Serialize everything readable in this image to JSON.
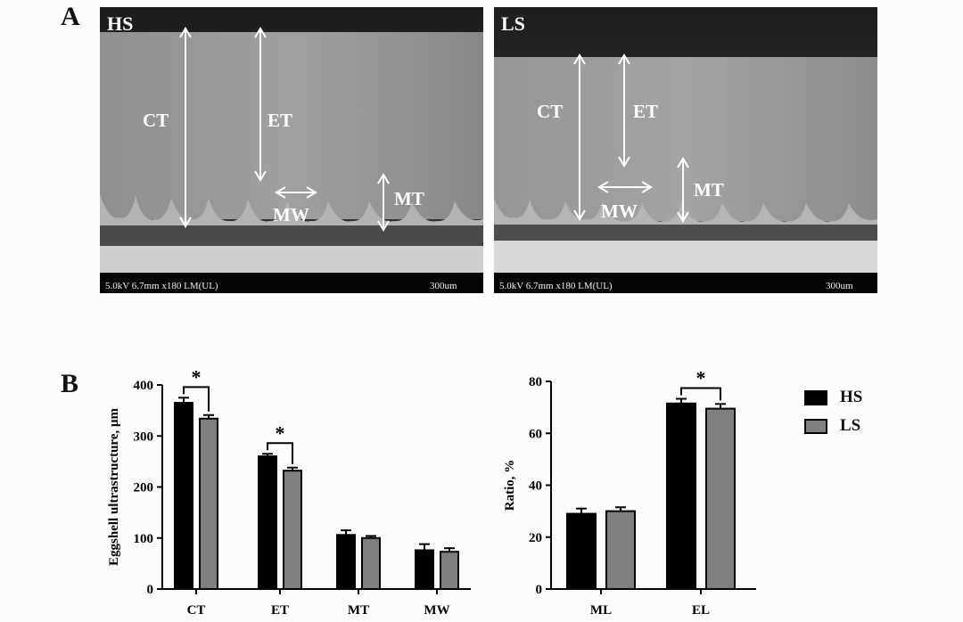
{
  "panels": {
    "a": "A",
    "b": "B"
  },
  "sem_images": [
    {
      "tag": "HS",
      "footer": "5.0kV 6.7mm x180 LM(UL)",
      "scale": "300um",
      "labels": [
        "CT",
        "ET",
        "MT",
        "MW"
      ]
    },
    {
      "tag": "LS",
      "footer": "5.0kV 6.7mm x180 LM(UL)",
      "scale": "300um",
      "labels": [
        "CT",
        "ET",
        "MT",
        "MW"
      ]
    }
  ],
  "legend": [
    {
      "name": "HS",
      "color": "#000000"
    },
    {
      "name": "LS",
      "color": "#808080"
    }
  ],
  "chart_data": [
    {
      "type": "bar",
      "ylabel": "Eggshell ultrastructure, μm",
      "xlabel": "",
      "categories": [
        "CT",
        "ET",
        "MT",
        "MW"
      ],
      "ylim": [
        0,
        400
      ],
      "yticks": [
        "0",
        "100",
        "200",
        "300",
        "400"
      ],
      "series": [
        {
          "name": "HS",
          "color": "#000000",
          "values": [
            365,
            260,
            106,
            76
          ],
          "errors": [
            10,
            5,
            9,
            12
          ]
        },
        {
          "name": "LS",
          "color": "#808080",
          "values": [
            334,
            232,
            100,
            73
          ],
          "errors": [
            7,
            6,
            4,
            7
          ]
        }
      ],
      "significance": [
        {
          "category": "CT",
          "label": "*"
        },
        {
          "category": "ET",
          "label": "*"
        }
      ]
    },
    {
      "type": "bar",
      "ylabel": "Ratio, %",
      "xlabel": "",
      "categories": [
        "ML",
        "EL"
      ],
      "ylim": [
        0,
        80
      ],
      "yticks": [
        "0",
        "20",
        "40",
        "60",
        "80"
      ],
      "series": [
        {
          "name": "HS",
          "color": "#000000",
          "values": [
            29,
            71.5
          ],
          "errors": [
            2,
            1.8
          ]
        },
        {
          "name": "LS",
          "color": "#808080",
          "values": [
            30,
            69.5
          ],
          "errors": [
            1.5,
            1.8
          ]
        }
      ],
      "significance": [
        {
          "category": "EL",
          "label": "*"
        }
      ]
    }
  ]
}
